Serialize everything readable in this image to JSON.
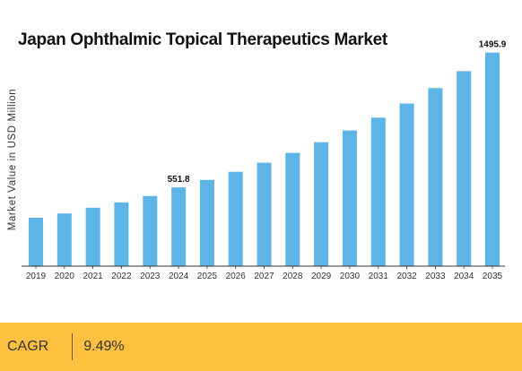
{
  "colors": {
    "bar": "#5db4e6",
    "footer_background": "#ffc13f",
    "axis": "#333333",
    "text": "#111111"
  },
  "footer": {
    "label": "CAGR",
    "value": "9.49%"
  },
  "chart_data": {
    "type": "bar",
    "title": "Japan Ophthalmic Topical Therapeutics Market",
    "xlabel": "",
    "ylabel": "Market Value in USD Million",
    "categories": [
      "2019",
      "2020",
      "2021",
      "2022",
      "2023",
      "2024",
      "2025",
      "2026",
      "2027",
      "2028",
      "2029",
      "2030",
      "2031",
      "2032",
      "2033",
      "2034",
      "2035"
    ],
    "series": [
      {
        "values": [
          339,
          369,
          409,
          446,
          491,
          551.8,
          604,
          661,
          724,
          793,
          868,
          950,
          1040,
          1139,
          1247,
          1366,
          1495.9
        ]
      }
    ],
    "data_labels": [
      {
        "category": "2024",
        "text": "551.8"
      },
      {
        "category": "2035",
        "text": "1495.9"
      }
    ],
    "ylim": [
      0,
      1500
    ],
    "grid": false,
    "legend": "none"
  }
}
